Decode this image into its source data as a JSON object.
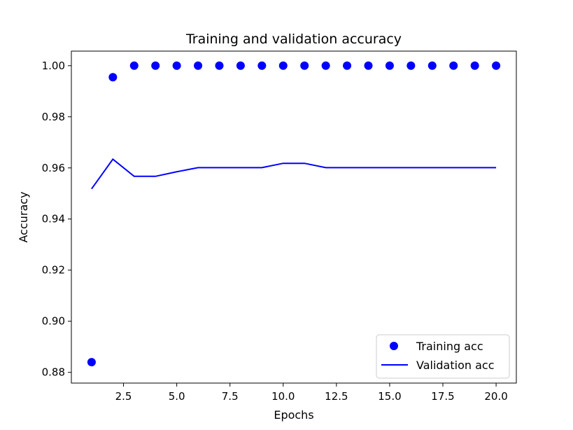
{
  "chart_data": {
    "type": "line",
    "title": "Training and validation accuracy",
    "xlabel": "Epochs",
    "ylabel": "Accuracy",
    "xlim": [
      0.05,
      20.95
    ],
    "ylim": [
      0.8758,
      1.0057
    ],
    "xticks": [
      2.5,
      5.0,
      7.5,
      10.0,
      12.5,
      15.0,
      17.5,
      20.0
    ],
    "xtick_labels": [
      "2.5",
      "5.0",
      "7.5",
      "10.0",
      "12.5",
      "15.0",
      "17.5",
      "20.0"
    ],
    "yticks": [
      0.88,
      0.9,
      0.92,
      0.94,
      0.96,
      0.98,
      1.0
    ],
    "ytick_labels": [
      "0.88",
      "0.90",
      "0.92",
      "0.94",
      "0.96",
      "0.98",
      "1.00"
    ],
    "grid": false,
    "legend_position": "bottom-right",
    "x": [
      1,
      2,
      3,
      4,
      5,
      6,
      7,
      8,
      9,
      10,
      11,
      12,
      13,
      14,
      15,
      16,
      17,
      18,
      19,
      20
    ],
    "series": [
      {
        "name": "Training acc",
        "style": "markers",
        "color": "#0000ff",
        "values": [
          0.884,
          0.9955,
          1.0,
          1.0,
          1.0,
          1.0,
          1.0,
          1.0,
          1.0,
          1.0,
          1.0,
          1.0,
          1.0,
          1.0,
          1.0,
          1.0,
          1.0,
          1.0,
          1.0,
          1.0
        ]
      },
      {
        "name": "Validation acc",
        "style": "line",
        "color": "#0000ff",
        "values": [
          0.9518,
          0.9634,
          0.9567,
          0.9567,
          0.9585,
          0.9601,
          0.9601,
          0.9601,
          0.9601,
          0.9618,
          0.9618,
          0.9601,
          0.9601,
          0.9601,
          0.9601,
          0.9601,
          0.9601,
          0.9601,
          0.9601,
          0.9601
        ]
      }
    ]
  }
}
